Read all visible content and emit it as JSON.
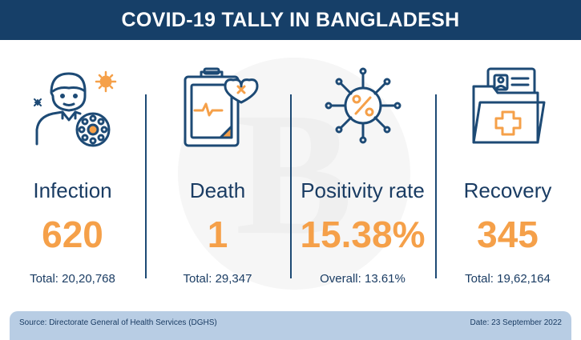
{
  "header": {
    "title": "COVID-19 TALLY IN BANGLADESH"
  },
  "colors": {
    "header_bg": "#163f68",
    "value": "#f5a049",
    "text": "#1a3c63",
    "footer_bg": "#b8cde4"
  },
  "stats": [
    {
      "icon": "person-virus-icon",
      "label": "Infection",
      "value": "620",
      "total": "Total: 20,20,768"
    },
    {
      "icon": "clipboard-heart-icon",
      "label": "Death",
      "value": "1",
      "total": "Total: 29,347"
    },
    {
      "icon": "virus-percent-icon",
      "label": "Positivity rate",
      "value": "15.38%",
      "total": "Overall: 13.61%"
    },
    {
      "icon": "medical-folder-icon",
      "label": "Recovery",
      "value": "345",
      "total": "Total: 19,62,164"
    }
  ],
  "footer": {
    "source": "Source: Directorate General of Health Services (DGHS)",
    "date": "Date: 23 September 2022"
  }
}
